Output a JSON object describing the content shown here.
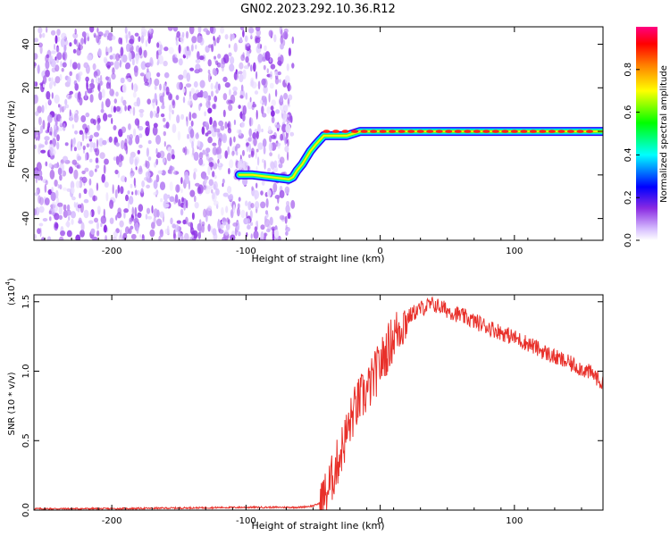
{
  "figure": {
    "title": "GN02.2023.292.10.36.R12"
  },
  "chart_data": [
    {
      "type": "heatmap",
      "title": "GN02.2023.292.10.36.R12",
      "xlabel": "Height of straight line (km)",
      "ylabel": "Frequency (Hz)",
      "xlim": [
        -258,
        166
      ],
      "ylim": [
        -50,
        48
      ],
      "x_ticks": [
        -200,
        -100,
        0,
        100
      ],
      "y_ticks": [
        -40,
        -20,
        0,
        20,
        40
      ],
      "colorbar": {
        "label": "Normalized spectral amplitude",
        "range": [
          0,
          1
        ],
        "ticks": [
          0.0,
          0.2,
          0.4,
          0.6,
          0.8
        ],
        "colors": [
          "#ffffff",
          "#a040ff",
          "#0000ff",
          "#00ffff",
          "#00ff00",
          "#ffff00",
          "#ff8000",
          "#ff0000",
          "#ff0080"
        ]
      },
      "noise_region": {
        "x_range": [
          -258,
          -65
        ],
        "y_range": [
          -50,
          48
        ],
        "amplitude_range": [
          0.02,
          0.15
        ]
      },
      "trace": {
        "x": [
          -105,
          -95,
          -68,
          -65,
          -62,
          -58,
          -55,
          -52,
          -48,
          -45,
          -42,
          -40,
          -35,
          -30,
          -25,
          -20,
          -15,
          -10,
          0,
          20,
          40,
          60,
          80,
          90,
          100,
          120,
          140,
          166
        ],
        "y": [
          -20,
          -20,
          -22,
          -21,
          -18,
          -15,
          -12,
          -9,
          -6,
          -4,
          -2,
          -2,
          -2,
          -2,
          -2,
          -1,
          0,
          0,
          0,
          0,
          0,
          0,
          0,
          0,
          0,
          0,
          0,
          0
        ]
      }
    },
    {
      "type": "line",
      "xlabel": "Height of straight line (km)",
      "ylabel": "SNR (10 * v/v)",
      "y_multiplier_label": "(x10",
      "y_multiplier_exp": "4",
      "y_multiplier_close": ")",
      "xlim": [
        -258,
        166
      ],
      "ylim": [
        0.0,
        1.55
      ],
      "x_ticks": [
        -200,
        -100,
        0,
        100
      ],
      "y_ticks": [
        0.0,
        0.5,
        1.0,
        1.5
      ],
      "series": [
        {
          "color": "#e8302a",
          "x": [
            -258,
            -200,
            -150,
            -100,
            -60,
            -50,
            -45,
            -40,
            -35,
            -30,
            -25,
            -20,
            -15,
            -10,
            -5,
            0,
            5,
            10,
            15,
            20,
            25,
            30,
            35,
            40,
            45,
            50,
            60,
            70,
            80,
            90,
            100,
            110,
            120,
            130,
            140,
            150,
            160,
            166
          ],
          "values": [
            0.01,
            0.01,
            0.015,
            0.02,
            0.02,
            0.03,
            0.05,
            0.12,
            0.25,
            0.4,
            0.55,
            0.7,
            0.8,
            0.85,
            0.95,
            1.05,
            1.15,
            1.25,
            1.32,
            1.38,
            1.42,
            1.45,
            1.47,
            1.48,
            1.46,
            1.44,
            1.4,
            1.36,
            1.32,
            1.28,
            1.24,
            1.2,
            1.15,
            1.1,
            1.06,
            1.02,
            0.97,
            0.9
          ]
        }
      ]
    }
  ]
}
